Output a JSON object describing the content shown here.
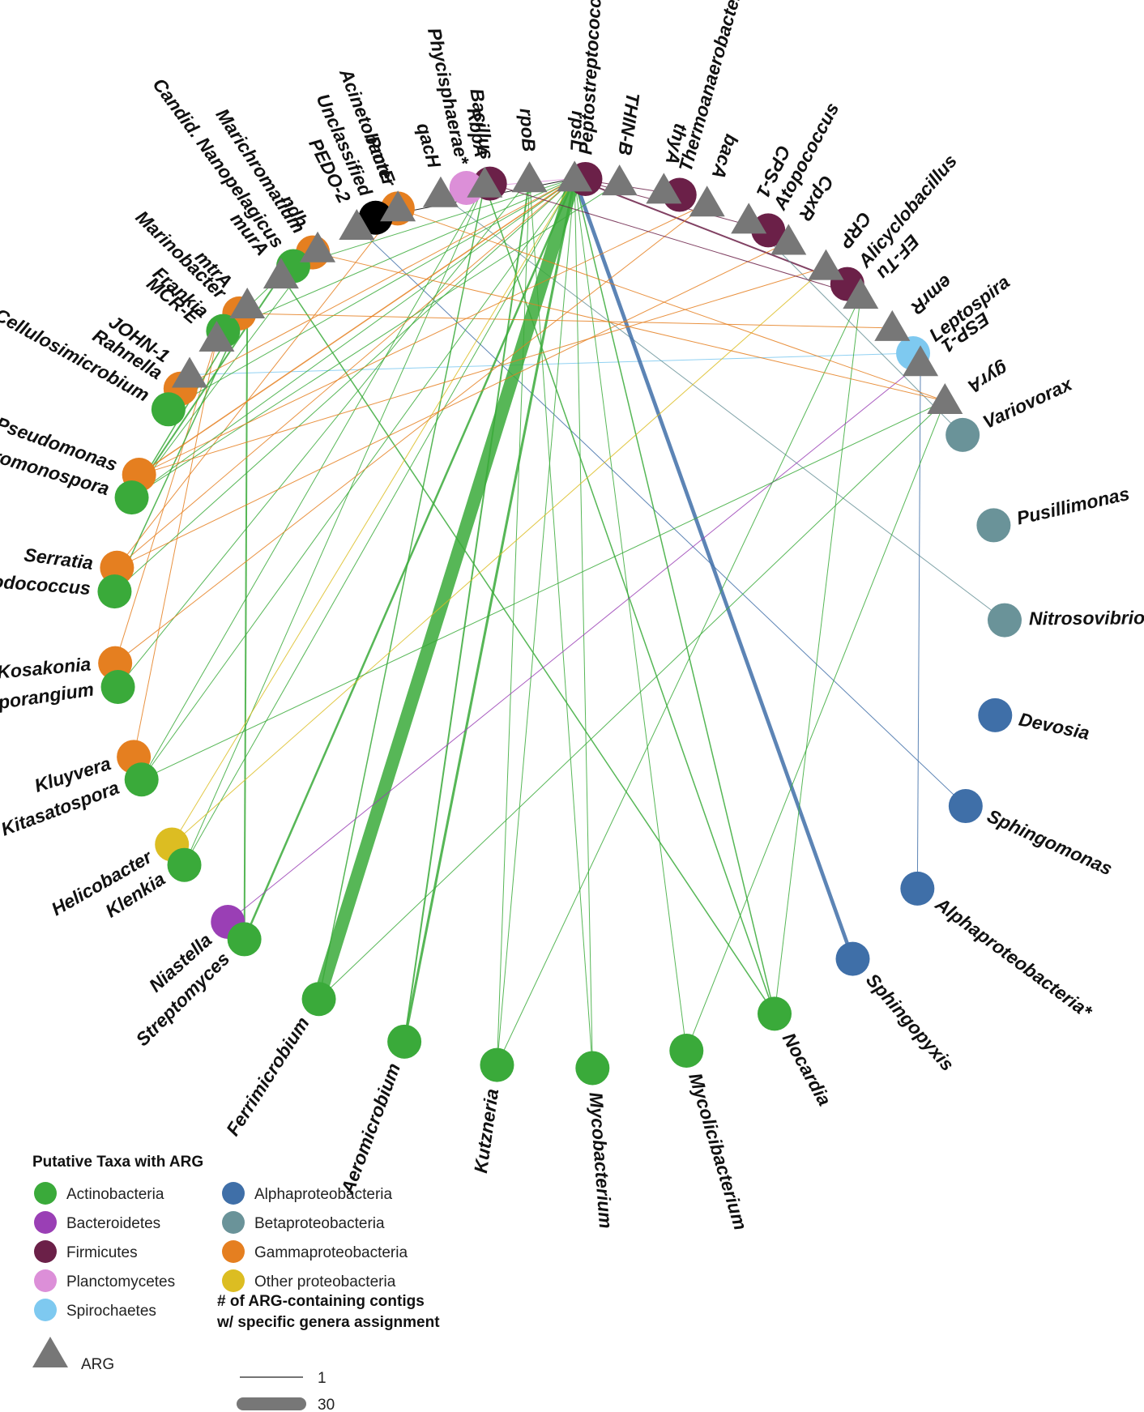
{
  "colors": {
    "Actinobacteria": "#3aaa3a",
    "Bacteroidetes": "#9a3fb5",
    "Firmicutes": "#6b2048",
    "Planctomycetes": "#dc8fd8",
    "Spirochaetes": "#7ec9f0",
    "Alphaproteobacteria": "#3f6fa8",
    "Betaproteobacteria": "#6a9399",
    "Gammaproteobacteria": "#e57f20",
    "Other proteobacteria": "#dcbd22",
    "Unclassified": "#000000",
    "ARG": "#777777"
  },
  "args": [
    "JOHN-1",
    "MCR-E",
    "mtrA",
    "murA",
    "ndh",
    "PEDO-2",
    "PmrE",
    "qacH",
    "RbpA",
    "rpoB",
    "rpsL",
    "THIN-B",
    "thyA",
    "bacA",
    "CPS-1",
    "CpxR",
    "CRP",
    "EF-Tu",
    "emrR",
    "ESP-1",
    "gyrA"
  ],
  "taxa": [
    {
      "name": "Niastella",
      "group": "Bacteroidetes"
    },
    {
      "name": "Helicobacter",
      "group": "Other proteobacteria"
    },
    {
      "name": "Kluyvera",
      "group": "Gammaproteobacteria"
    },
    {
      "name": "Kosakonia",
      "group": "Gammaproteobacteria"
    },
    {
      "name": "Serratia",
      "group": "Gammaproteobacteria"
    },
    {
      "name": "Pseudomonas",
      "group": "Gammaproteobacteria"
    },
    {
      "name": "Rahnella",
      "group": "Gammaproteobacteria"
    },
    {
      "name": "Marinobacter",
      "group": "Gammaproteobacteria"
    },
    {
      "name": "Marichromatium",
      "group": "Gammaproteobacteria"
    },
    {
      "name": "Acinetobacter",
      "group": "Gammaproteobacteria"
    },
    {
      "name": "Bacillus",
      "group": "Firmicutes"
    },
    {
      "name": "Peptostreptococcaceae*",
      "group": "Firmicutes"
    },
    {
      "name": "Thermoanaerobacter",
      "group": "Firmicutes"
    },
    {
      "name": "Atopococcus",
      "group": "Firmicutes"
    },
    {
      "name": "Alicyclobacillus",
      "group": "Firmicutes"
    },
    {
      "name": "Leptospira",
      "group": "Spirochaetes"
    },
    {
      "name": "Variovorax",
      "group": "Betaproteobacteria"
    },
    {
      "name": "Pusillimonas",
      "group": "Betaproteobacteria"
    },
    {
      "name": "Nitrosovibrio",
      "group": "Betaproteobacteria"
    },
    {
      "name": "Devosia",
      "group": "Alphaproteobacteria"
    },
    {
      "name": "Sphingomonas",
      "group": "Alphaproteobacteria"
    },
    {
      "name": "Alphaproteobacteria*",
      "group": "Alphaproteobacteria"
    },
    {
      "name": "Sphingopyxis",
      "group": "Alphaproteobacteria"
    },
    {
      "name": "Nocardia",
      "group": "Actinobacteria"
    },
    {
      "name": "Mycolicibacterium",
      "group": "Actinobacteria"
    },
    {
      "name": "Mycobacterium",
      "group": "Actinobacteria"
    },
    {
      "name": "Kutzneria",
      "group": "Actinobacteria"
    },
    {
      "name": "Aeromicrobium",
      "group": "Actinobacteria"
    },
    {
      "name": "Ferrimicrobium",
      "group": "Actinobacteria"
    },
    {
      "name": "Streptomyces",
      "group": "Actinobacteria"
    },
    {
      "name": "Klenkia",
      "group": "Actinobacteria"
    },
    {
      "name": "Kitasatospora",
      "group": "Actinobacteria"
    },
    {
      "name": "Intrasporangium",
      "group": "Actinobacteria"
    },
    {
      "name": "Rhodococcus",
      "group": "Actinobacteria"
    },
    {
      "name": "Saccharomonospora",
      "group": "Actinobacteria"
    },
    {
      "name": "Cellulosimicrobium",
      "group": "Actinobacteria"
    },
    {
      "name": "Frankia",
      "group": "Actinobacteria"
    },
    {
      "name": "Candid. Nanopelagicus",
      "group": "Actinobacteria"
    },
    {
      "name": "Unclassified",
      "group": "Unclassified"
    },
    {
      "name": "Phycisphaerae*",
      "group": "Planctomycetes"
    }
  ],
  "edges": [
    {
      "arg": "JOHN-1",
      "taxon": "Leptospira",
      "count": 1
    },
    {
      "arg": "MCR-E",
      "taxon": "Kluyvera",
      "count": 1
    },
    {
      "arg": "MCR-E",
      "taxon": "Kosakonia",
      "count": 1
    },
    {
      "arg": "mtrA",
      "taxon": "Streptomyces",
      "count": 3
    },
    {
      "arg": "mtrA",
      "taxon": "Saccharomonospora",
      "count": 2
    },
    {
      "arg": "mtrA",
      "taxon": "Rhodococcus",
      "count": 2
    },
    {
      "arg": "murA",
      "taxon": "Nocardia",
      "count": 2
    },
    {
      "arg": "murA",
      "taxon": "Saccharomonospora",
      "count": 3
    },
    {
      "arg": "murA",
      "taxon": "Frankia",
      "count": 1
    },
    {
      "arg": "ndh",
      "taxon": "Saccharomonospora",
      "count": 1
    },
    {
      "arg": "PEDO-2",
      "taxon": "Sphingomonas",
      "count": 1
    },
    {
      "arg": "PmrE",
      "taxon": "Serratia",
      "count": 1
    },
    {
      "arg": "qacH",
      "taxon": "Nitrosovibrio",
      "count": 1
    },
    {
      "arg": "RbpA",
      "taxon": "Nocardia",
      "count": 2
    },
    {
      "arg": "RbpA",
      "taxon": "Ferrimicrobium",
      "count": 2
    },
    {
      "arg": "RbpA",
      "taxon": "Kitasatospora",
      "count": 1
    },
    {
      "arg": "RbpA",
      "taxon": "Klenkia",
      "count": 1
    },
    {
      "arg": "rpoB",
      "taxon": "Aeromicrobium",
      "count": 3
    },
    {
      "arg": "rpoB",
      "taxon": "Kutzneria",
      "count": 1
    },
    {
      "arg": "rpoB",
      "taxon": "Intrasporangium",
      "count": 1
    },
    {
      "arg": "rpoB",
      "taxon": "Mycobacterium",
      "count": 1
    },
    {
      "arg": "rpsL",
      "taxon": "Ferrimicrobium",
      "count": 30
    },
    {
      "arg": "rpsL",
      "taxon": "Sphingopyxis",
      "count": 8
    },
    {
      "arg": "rpsL",
      "taxon": "Alicyclobacillus",
      "count": 3
    },
    {
      "arg": "rpsL",
      "taxon": "Aeromicrobium",
      "count": 5
    },
    {
      "arg": "rpsL",
      "taxon": "Streptomyces",
      "count": 4
    },
    {
      "arg": "rpsL",
      "taxon": "Nocardia",
      "count": 2
    },
    {
      "arg": "rpsL",
      "taxon": "Mycolicibacterium",
      "count": 1
    },
    {
      "arg": "rpsL",
      "taxon": "Mycobacterium",
      "count": 1
    },
    {
      "arg": "rpsL",
      "taxon": "Kutzneria",
      "count": 1
    },
    {
      "arg": "rpsL",
      "taxon": "Klenkia",
      "count": 1
    },
    {
      "arg": "rpsL",
      "taxon": "Kitasatospora",
      "count": 1
    },
    {
      "arg": "rpsL",
      "taxon": "Rhodococcus",
      "count": 1
    },
    {
      "arg": "rpsL",
      "taxon": "Saccharomonospora",
      "count": 1
    },
    {
      "arg": "rpsL",
      "taxon": "Cellulosimicrobium",
      "count": 1
    },
    {
      "arg": "rpsL",
      "taxon": "Frankia",
      "count": 1
    },
    {
      "arg": "rpsL",
      "taxon": "Candid. Nanopelagicus",
      "count": 1
    },
    {
      "arg": "rpsL",
      "taxon": "Unclassified",
      "count": 1
    },
    {
      "arg": "rpsL",
      "taxon": "Phycisphaerae*",
      "count": 1
    },
    {
      "arg": "rpsL",
      "taxon": "Pseudomonas",
      "count": 2
    },
    {
      "arg": "rpsL",
      "taxon": "Serratia",
      "count": 1
    },
    {
      "arg": "rpsL",
      "taxon": "Rahnella",
      "count": 1
    },
    {
      "arg": "rpsL",
      "taxon": "Helicobacter",
      "count": 1
    },
    {
      "arg": "rpsL",
      "taxon": "Peptostreptococcaceae*",
      "count": 1
    },
    {
      "arg": "rpsL",
      "taxon": "Thermoanaerobacter",
      "count": 1
    },
    {
      "arg": "rpsL",
      "taxon": "Atopococcus",
      "count": 1
    },
    {
      "arg": "THIN-B",
      "taxon": "Saccharomonospora",
      "count": 1
    },
    {
      "arg": "bacA",
      "taxon": "Pseudomonas",
      "count": 1
    },
    {
      "arg": "bacA",
      "taxon": "Kosakonia",
      "count": 1
    },
    {
      "arg": "CPS-1",
      "taxon": "Variovorax",
      "count": 1
    },
    {
      "arg": "CpxR",
      "taxon": "Serratia",
      "count": 1
    },
    {
      "arg": "CRP",
      "taxon": "Pseudomonas",
      "count": 1
    },
    {
      "arg": "CRP",
      "taxon": "Helicobacter",
      "count": 1
    },
    {
      "arg": "EF-Tu",
      "taxon": "Bacillus",
      "count": 1
    },
    {
      "arg": "EF-Tu",
      "taxon": "Nocardia",
      "count": 1
    },
    {
      "arg": "EF-Tu",
      "taxon": "Kutzneria",
      "count": 1
    },
    {
      "arg": "emrR",
      "taxon": "Marinobacter",
      "count": 1
    },
    {
      "arg": "ESP-1",
      "taxon": "Niastella",
      "count": 1
    },
    {
      "arg": "ESP-1",
      "taxon": "Alphaproteobacteria*",
      "count": 1
    },
    {
      "arg": "gyrA",
      "taxon": "Mycolicibacterium",
      "count": 1
    },
    {
      "arg": "gyrA",
      "taxon": "Kitasatospora",
      "count": 1
    },
    {
      "arg": "gyrA",
      "taxon": "Ferrimicrobium",
      "count": 1
    },
    {
      "arg": "gyrA",
      "taxon": "Marichromatium",
      "count": 1
    },
    {
      "arg": "gyrA",
      "taxon": "Acinetobacter",
      "count": 1
    }
  ],
  "legend": {
    "title": "Putative Taxa with ARG",
    "groups_left": [
      "Actinobacteria",
      "Bacteroidetes",
      "Firmicutes",
      "Planctomycetes",
      "Spirochaetes"
    ],
    "groups_right": [
      "Alphaproteobacteria",
      "Betaproteobacteria",
      "Gammaproteobacteria",
      "Other proteobacteria"
    ],
    "arg_label": "ARG",
    "width_title_line1": "# of ARG-containing contigs",
    "width_title_line2": "w/ specific genera assignment",
    "width_min_label": "1",
    "width_max_label": "30"
  }
}
